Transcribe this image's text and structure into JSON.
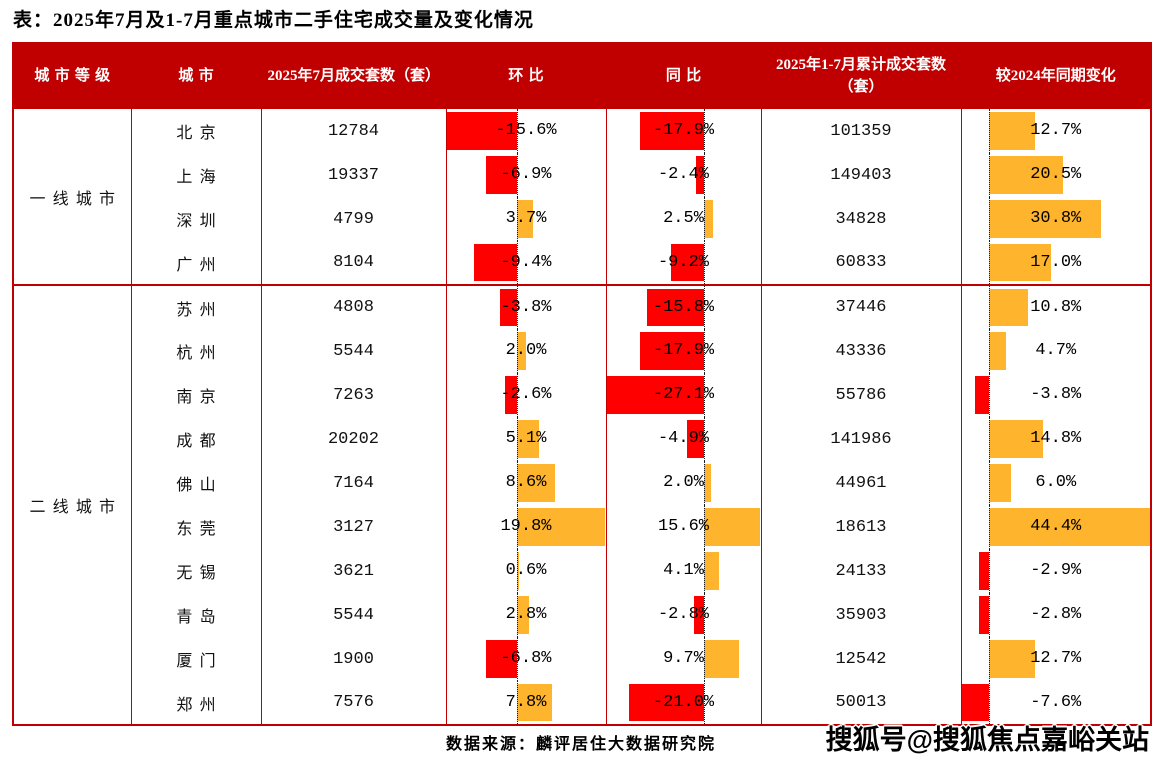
{
  "title": "表：2025年7月及1-7月重点城市二手住宅成交量及变化情况",
  "source": "数据来源：麟评居住大数据研究院",
  "watermark": "搜狐号@搜狐焦点嘉峪关站",
  "colors": {
    "header_bg": "#C00000",
    "border": "#C00000",
    "bar_negative": "#FF0000",
    "bar_positive": "#FFB42E"
  },
  "chart_data": {
    "type": "table",
    "title": "表：2025年7月及1-7月重点城市二手住宅成交量及变化情况",
    "columns": [
      "城市等级",
      "城市",
      "2025年7月成交套数（套）",
      "环比",
      "同比",
      "2025年1-7月累计成交套数（套）",
      "较2024年同期变化"
    ],
    "bar_axes": {
      "mom": {
        "min": -15.6,
        "max": 19.8
      },
      "yoy": {
        "min": -27.1,
        "max": 15.6
      },
      "vs2024": {
        "min": -7.6,
        "max": 44.4
      }
    },
    "groups": [
      {
        "label": "一线城市",
        "cities": [
          {
            "name": "北京",
            "july": "12784",
            "mom": -15.6,
            "yoy": -17.9,
            "cumulative": "101359",
            "vs2024": 12.7
          },
          {
            "name": "上海",
            "july": "19337",
            "mom": -6.9,
            "yoy": -2.4,
            "cumulative": "149403",
            "vs2024": 20.5
          },
          {
            "name": "深圳",
            "july": "4799",
            "mom": 3.7,
            "yoy": 2.5,
            "cumulative": "34828",
            "vs2024": 30.8
          },
          {
            "name": "广州",
            "july": "8104",
            "mom": -9.4,
            "yoy": -9.2,
            "cumulative": "60833",
            "vs2024": 17.0
          }
        ]
      },
      {
        "label": "二线城市",
        "cities": [
          {
            "name": "苏州",
            "july": "4808",
            "mom": -3.8,
            "yoy": -15.8,
            "cumulative": "37446",
            "vs2024": 10.8
          },
          {
            "name": "杭州",
            "july": "5544",
            "mom": 2.0,
            "yoy": -17.9,
            "cumulative": "43336",
            "vs2024": 4.7
          },
          {
            "name": "南京",
            "july": "7263",
            "mom": -2.6,
            "yoy": -27.1,
            "cumulative": "55786",
            "vs2024": -3.8
          },
          {
            "name": "成都",
            "july": "20202",
            "mom": 5.1,
            "yoy": -4.9,
            "cumulative": "141986",
            "vs2024": 14.8
          },
          {
            "name": "佛山",
            "july": "7164",
            "mom": 8.6,
            "yoy": 2.0,
            "cumulative": "44961",
            "vs2024": 6.0
          },
          {
            "name": "东莞",
            "july": "3127",
            "mom": 19.8,
            "yoy": 15.6,
            "cumulative": "18613",
            "vs2024": 44.4
          },
          {
            "name": "无锡",
            "july": "3621",
            "mom": 0.6,
            "yoy": 4.1,
            "cumulative": "24133",
            "vs2024": -2.9
          },
          {
            "name": "青岛",
            "july": "5544",
            "mom": 2.8,
            "yoy": -2.8,
            "cumulative": "35903",
            "vs2024": -2.8
          },
          {
            "name": "厦门",
            "july": "1900",
            "mom": -6.8,
            "yoy": 9.7,
            "cumulative": "12542",
            "vs2024": 12.7
          },
          {
            "name": "郑州",
            "july": "7576",
            "mom": 7.8,
            "yoy": -21.0,
            "cumulative": "50013",
            "vs2024": -7.6
          }
        ]
      }
    ]
  }
}
